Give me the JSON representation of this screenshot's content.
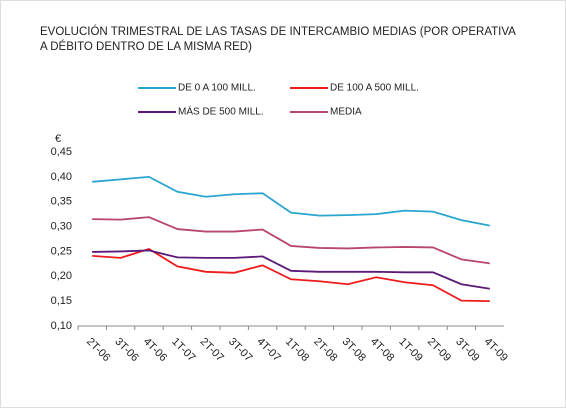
{
  "chart_data": {
    "type": "line",
    "title": [
      "EVOLUCIÓN TRIMESTRAL DE LAS TASAS DE INTERCAMBIO MEDIAS (POR OPERATIVA",
      "A DÉBITO DENTRO DE LA MISMA RED)"
    ],
    "y_label": "€",
    "categories": [
      "2T-06",
      "3T-06",
      "4T-06",
      "1T-07",
      "2T-07",
      "3T-07",
      "4T-07",
      "1T-08",
      "2T-08",
      "3T-08",
      "4T-08",
      "1T-09",
      "2T-09",
      "3T-09",
      "4T-09"
    ],
    "series": [
      {
        "name": "DE 0 A 100 MILL.",
        "color": "#2aa5cf",
        "values": [
          0.39,
          0.395,
          0.4,
          0.37,
          0.36,
          0.365,
          0.367,
          0.328,
          0.322,
          0.323,
          0.325,
          0.332,
          0.33,
          0.313,
          0.302
        ]
      },
      {
        "name": "DE 100 A 500 MILL.",
        "color": "#ee1c1c",
        "values": [
          0.241,
          0.237,
          0.255,
          0.22,
          0.209,
          0.207,
          0.222,
          0.194,
          0.19,
          0.184,
          0.198,
          0.188,
          0.182,
          0.151,
          0.15
        ]
      },
      {
        "name": "MÁS DE 500 MILL.",
        "color": "#5b1a7a",
        "values": [
          0.249,
          0.25,
          0.252,
          0.238,
          0.237,
          0.237,
          0.24,
          0.211,
          0.209,
          0.209,
          0.209,
          0.208,
          0.208,
          0.184,
          0.175
        ]
      },
      {
        "name": "MEDIA",
        "color": "#b8466e",
        "values": [
          0.315,
          0.314,
          0.319,
          0.295,
          0.29,
          0.29,
          0.294,
          0.261,
          0.257,
          0.256,
          0.258,
          0.259,
          0.258,
          0.234,
          0.226
        ]
      }
    ],
    "ylim": [
      0.1,
      0.45
    ],
    "yticks": [
      {
        "value": 0.1,
        "label": "0,10"
      },
      {
        "value": 0.15,
        "label": "0,15"
      },
      {
        "value": 0.2,
        "label": "0,20"
      },
      {
        "value": 0.25,
        "label": "0,25"
      },
      {
        "value": 0.3,
        "label": "0,30"
      },
      {
        "value": 0.35,
        "label": "0,35"
      },
      {
        "value": 0.4,
        "label": "0,40"
      },
      {
        "value": 0.45,
        "label": "0,45"
      }
    ],
    "grid": false
  }
}
